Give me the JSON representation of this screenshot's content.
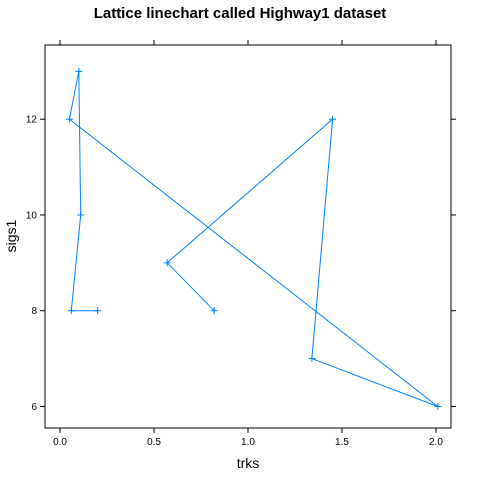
{
  "chart_data": {
    "type": "line",
    "title": "Lattice linechart called Highway1 dataset",
    "xlabel": "trks",
    "ylabel": "sigs1",
    "xlim": [
      -0.08,
      2.08
    ],
    "ylim": [
      5.55,
      13.55
    ],
    "xticks": [
      0,
      0.5,
      1,
      1.5,
      2
    ],
    "xtick_labels": [
      "0.0",
      "0.5",
      "1.0",
      "1.5",
      "2.0"
    ],
    "yticks": [
      6,
      8,
      10,
      12
    ],
    "ytick_labels": [
      "6",
      "8",
      "10",
      "12"
    ],
    "grid": false,
    "color": "#0080ff",
    "series": [
      {
        "x": [
          0.2,
          0.06,
          0.11,
          0.1,
          0.05,
          2.01,
          1.34,
          1.45,
          0.57,
          0.82
        ],
        "y": [
          8,
          8,
          10,
          13,
          12,
          6,
          7,
          12,
          9,
          8
        ]
      }
    ]
  }
}
